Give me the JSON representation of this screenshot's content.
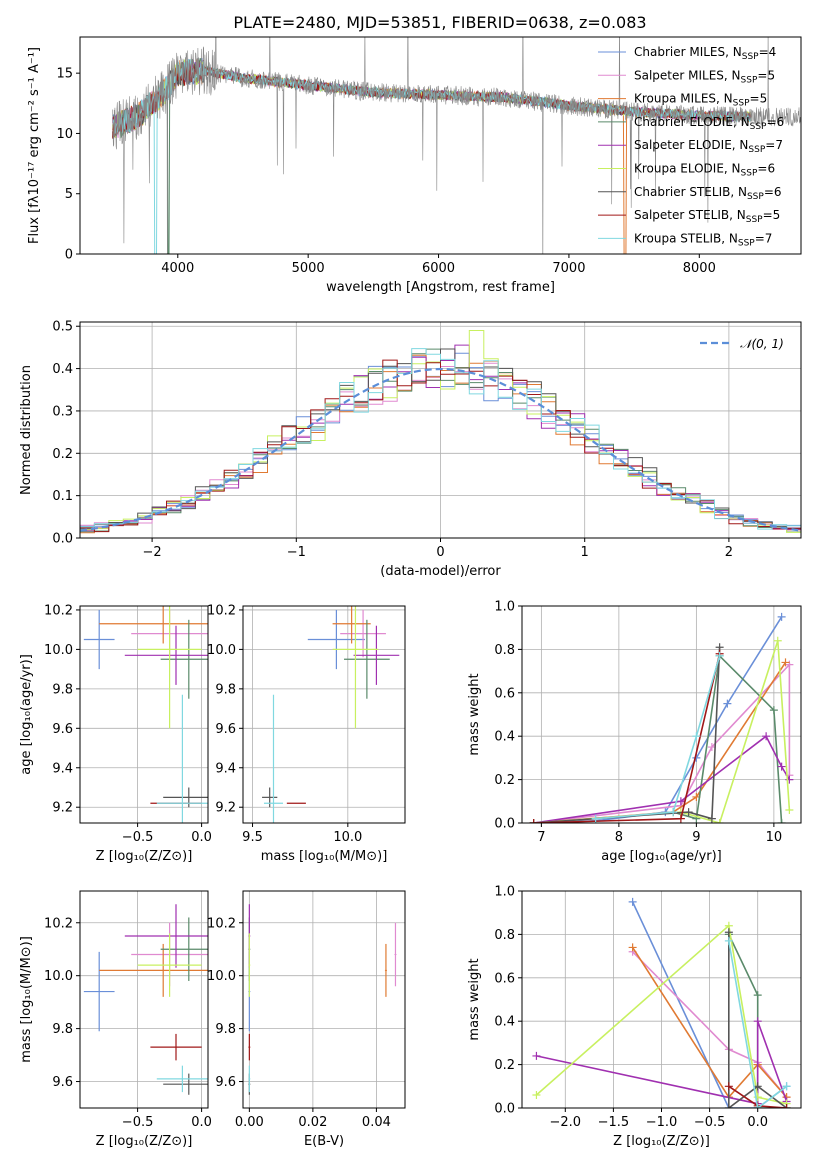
{
  "figure": {
    "title": "PLATE=2480, MJD=53851, FIBERID=0638, z=0.083"
  },
  "colors": {
    "chabrier_miles": "#6a8fd8",
    "salpeter_miles": "#e08ad0",
    "kroupa_miles": "#e07a33",
    "chabrier_elodie": "#5a8a6a",
    "salpeter_elodie": "#a030b0",
    "kroupa_elodie": "#c8f060",
    "chabrier_stelib": "#555555",
    "salpeter_stelib": "#a01818",
    "kroupa_stelib": "#80d8e0",
    "data": "#888888",
    "normal": "#5b8ed8"
  },
  "chart_data": [
    {
      "id": "spectrum",
      "type": "line",
      "xlabel": "wavelength [Angstrom, rest frame]",
      "ylabel": "Flux [fλ10⁻¹⁷ erg cm⁻² s⁻¹ A⁻¹]",
      "xlim": [
        3250,
        8780
      ],
      "ylim": [
        0,
        18
      ],
      "xticks": [
        "4000",
        "5000",
        "6000",
        "7000",
        "8000"
      ],
      "yticks": [
        "0",
        "5",
        "10",
        "15"
      ],
      "grid": false,
      "legend_position": "top-right",
      "legend": [
        {
          "label": "Chabrier MILES, N",
          "sub": "SSP",
          "post": "=4",
          "color_key": "chabrier_miles"
        },
        {
          "label": "Salpeter MILES, N",
          "sub": "SSP",
          "post": "=5",
          "color_key": "salpeter_miles"
        },
        {
          "label": "Kroupa MILES, N",
          "sub": "SSP",
          "post": "=5",
          "color_key": "kroupa_miles"
        },
        {
          "label": "Chabrier ELODIE, N",
          "sub": "SSP",
          "post": "=6",
          "color_key": "chabrier_elodie"
        },
        {
          "label": "Salpeter ELODIE, N",
          "sub": "SSP",
          "post": "=7",
          "color_key": "salpeter_elodie"
        },
        {
          "label": "Kroupa ELODIE, N",
          "sub": "SSP",
          "post": "=6",
          "color_key": "kroupa_elodie"
        },
        {
          "label": "Chabrier STELIB, N",
          "sub": "SSP",
          "post": "=6",
          "color_key": "chabrier_stelib"
        },
        {
          "label": "Salpeter STELIB, N",
          "sub": "SSP",
          "post": "=5",
          "color_key": "salpeter_stelib"
        },
        {
          "label": "Kroupa STELIB, N",
          "sub": "SSP",
          "post": "=7",
          "color_key": "kroupa_stelib"
        }
      ],
      "continuum": [
        [
          3500,
          10.5
        ],
        [
          3700,
          11.5
        ],
        [
          3900,
          13.5
        ],
        [
          4000,
          15.0
        ],
        [
          4200,
          15.2
        ],
        [
          4500,
          14.6
        ],
        [
          5000,
          14.0
        ],
        [
          5500,
          13.4
        ],
        [
          6000,
          13.2
        ],
        [
          6500,
          13.0
        ],
        [
          7000,
          12.3
        ],
        [
          7500,
          11.8
        ],
        [
          8000,
          11.5
        ],
        [
          8400,
          11.4
        ]
      ],
      "models_range": [
        3500,
        8400
      ]
    },
    {
      "id": "residuals",
      "type": "histogram",
      "xlabel": "(data-model)/error",
      "ylabel": "Normed distribution",
      "xlim": [
        -2.5,
        2.5
      ],
      "ylim": [
        0,
        0.51
      ],
      "xticks": [
        "−2",
        "−1",
        "0",
        "1",
        "2"
      ],
      "yticks": [
        "0.0",
        "0.1",
        "0.2",
        "0.3",
        "0.4",
        "0.5"
      ],
      "grid": true,
      "legend_position": "top-right",
      "legend": [
        {
          "label": "𝒩(0, 1)",
          "color_key": "normal"
        }
      ],
      "bin_width": 0.1
    },
    {
      "id": "age_vs_Z",
      "type": "scatter",
      "xlabel": "Z [log₁₀(Z/Z⊙)]",
      "ylabel": "age  [log₁₀(age/yr)]",
      "xlim": [
        -0.95,
        0.05
      ],
      "ylim": [
        9.12,
        10.22
      ],
      "xticks": [
        "−0.5",
        "0.0"
      ],
      "yticks": [
        "9.2",
        "9.4",
        "9.6",
        "9.8",
        "10.0",
        "10.2"
      ],
      "grid": true
    },
    {
      "id": "age_vs_mass",
      "type": "scatter",
      "xlabel": "mass [log₁₀(M/M⊙)]",
      "ylabel": "",
      "xlim": [
        9.45,
        10.3
      ],
      "ylim": [
        9.12,
        10.22
      ],
      "xticks": [
        "9.5",
        "10.0"
      ],
      "yticks": [
        "9.2",
        "9.4",
        "9.6",
        "9.8",
        "10.0",
        "10.2"
      ],
      "grid": true
    },
    {
      "id": "weight_vs_age",
      "type": "line",
      "xlabel": "age  [log₁₀(age/yr)]",
      "ylabel": "mass weight",
      "xlim": [
        6.75,
        10.35
      ],
      "ylim": [
        0,
        1.0
      ],
      "xticks": [
        "7",
        "8",
        "9",
        "10"
      ],
      "yticks": [
        "0.0",
        "0.2",
        "0.4",
        "0.6",
        "0.8",
        "1.0"
      ],
      "grid": true
    },
    {
      "id": "mass_vs_Z",
      "type": "scatter",
      "xlabel": "Z [log₁₀(Z/Z⊙)]",
      "ylabel": "mass [log₁₀(M/M⊙)]",
      "xlim": [
        -0.95,
        0.05
      ],
      "ylim": [
        9.5,
        10.32
      ],
      "xticks": [
        "−0.5",
        "0.0"
      ],
      "yticks": [
        "9.6",
        "9.8",
        "10.0",
        "10.2"
      ],
      "grid": true
    },
    {
      "id": "mass_vs_ebv",
      "type": "scatter",
      "xlabel": "E(B-V)",
      "ylabel": "",
      "xlim": [
        -0.002,
        0.049
      ],
      "ylim": [
        9.5,
        10.32
      ],
      "xticks": [
        "0.00",
        "0.02",
        "0.04"
      ],
      "yticks": [
        "9.6",
        "9.8",
        "10.0",
        "10.2"
      ],
      "grid": true
    },
    {
      "id": "weight_vs_Z",
      "type": "line",
      "xlabel": "Z [log₁₀(Z/Z⊙)]",
      "ylabel": "mass weight",
      "xlim": [
        -2.45,
        0.45
      ],
      "ylim": [
        0,
        1.0
      ],
      "xticks": [
        "−2.0",
        "−1.5",
        "−1.0",
        "−0.5",
        "0.0"
      ],
      "yticks": [
        "0.0",
        "0.2",
        "0.4",
        "0.6",
        "0.8",
        "1.0"
      ],
      "grid": true
    }
  ],
  "models": [
    {
      "key": "chabrier_miles",
      "age": 10.05,
      "age_err": 0.15,
      "Z": -0.8,
      "Z_err": 0.12,
      "mass": 9.94,
      "mass_err": 0.15,
      "ebv": 0.0,
      "age_w": [
        [
          6.9,
          0.0
        ],
        [
          7.7,
          0.01
        ],
        [
          8.6,
          0.05
        ],
        [
          9.0,
          0.3
        ],
        [
          9.4,
          0.55
        ],
        [
          10.1,
          0.95
        ]
      ],
      "Z_w": [
        [
          -1.3,
          0.95
        ],
        [
          -0.3,
          0.0
        ],
        [
          0.0,
          0.0
        ],
        [
          0.3,
          0.1
        ]
      ]
    },
    {
      "key": "salpeter_miles",
      "age": 10.08,
      "age_err": 0.12,
      "Z": -0.25,
      "Z_err": 0.3,
      "mass": 10.08,
      "mass_err": 0.12,
      "ebv": 0.046,
      "age_w": [
        [
          6.9,
          0.0
        ],
        [
          8.8,
          0.08
        ],
        [
          9.2,
          0.35
        ],
        [
          10.2,
          0.73
        ],
        [
          10.2,
          0.22
        ]
      ],
      "Z_w": [
        [
          -1.3,
          0.72
        ],
        [
          -0.3,
          0.27
        ],
        [
          0.0,
          0.21
        ],
        [
          0.3,
          0.05
        ]
      ]
    },
    {
      "key": "kroupa_miles",
      "age": 10.13,
      "age_err": 0.1,
      "Z": -0.3,
      "Z_err": 0.5,
      "mass": 10.02,
      "mass_err": 0.1,
      "ebv": 0.043,
      "age_w": [
        [
          6.9,
          0.0
        ],
        [
          8.7,
          0.05
        ],
        [
          9.0,
          0.12
        ],
        [
          10.15,
          0.74
        ]
      ],
      "Z_w": [
        [
          -1.3,
          0.74
        ],
        [
          -0.3,
          0.05
        ],
        [
          0.0,
          0.2
        ],
        [
          0.3,
          0.05
        ]
      ]
    },
    {
      "key": "chabrier_elodie",
      "age": 9.95,
      "age_err": 0.2,
      "Z": -0.1,
      "Z_err": 0.22,
      "mass": 10.1,
      "mass_err": 0.12,
      "ebv": 0.0,
      "age_w": [
        [
          8.7,
          0.05
        ],
        [
          9.0,
          0.02
        ],
        [
          9.3,
          0.77
        ],
        [
          10.0,
          0.52
        ],
        [
          10.1,
          0.0
        ]
      ],
      "Z_w": [
        [
          -0.3,
          0.8
        ],
        [
          0.0,
          0.52
        ],
        [
          0.0,
          0.0
        ],
        [
          0.3,
          0.0
        ]
      ]
    },
    {
      "key": "salpeter_elodie",
      "age": 9.97,
      "age_err": 0.15,
      "Z": -0.2,
      "Z_err": 0.4,
      "mass": 10.15,
      "mass_err": 0.12,
      "ebv": 0.0,
      "age_w": [
        [
          6.9,
          0.0
        ],
        [
          8.8,
          0.1
        ],
        [
          9.9,
          0.4
        ],
        [
          10.1,
          0.26
        ],
        [
          10.2,
          0.2
        ]
      ],
      "Z_w": [
        [
          -2.3,
          0.24
        ],
        [
          0.0,
          0.02
        ],
        [
          0.0,
          0.4
        ],
        [
          0.3,
          0.03
        ]
      ]
    },
    {
      "key": "kroupa_elodie",
      "age": 10.0,
      "age_err": 0.4,
      "Z": -0.25,
      "Z_err": 0.25,
      "mass": 10.04,
      "mass_err": 0.12,
      "ebv": 0.0,
      "age_w": [
        [
          6.9,
          0.0
        ],
        [
          8.8,
          0.05
        ],
        [
          9.3,
          0.0
        ],
        [
          10.05,
          0.84
        ],
        [
          10.2,
          0.06
        ]
      ],
      "Z_w": [
        [
          -2.3,
          0.06
        ],
        [
          -0.3,
          0.84
        ],
        [
          0.0,
          0.05
        ],
        [
          0.3,
          0.02
        ]
      ]
    },
    {
      "key": "chabrier_stelib",
      "age": 9.25,
      "age_err": 0.05,
      "Z": -0.1,
      "Z_err": 0.2,
      "mass": 9.59,
      "mass_err": 0.04,
      "ebv": 0.0,
      "age_w": [
        [
          6.9,
          0.0
        ],
        [
          8.9,
          0.05
        ],
        [
          9.2,
          0.02
        ],
        [
          9.3,
          0.81
        ]
      ],
      "Z_w": [
        [
          -0.3,
          0.81
        ],
        [
          -0.3,
          0.0
        ],
        [
          0.0,
          0.1
        ],
        [
          0.3,
          0.0
        ]
      ]
    },
    {
      "key": "salpeter_stelib",
      "age": 9.22,
      "age_err": 0.0,
      "Z": -0.2,
      "Z_err": 0.2,
      "mass": 9.73,
      "mass_err": 0.05,
      "ebv": 0.0,
      "age_w": [
        [
          6.9,
          0.0
        ],
        [
          8.8,
          0.02
        ],
        [
          9.3,
          0.78
        ]
      ],
      "Z_w": [
        [
          -0.3,
          0.1
        ],
        [
          0.0,
          0.01
        ],
        [
          0.3,
          0.0
        ]
      ]
    },
    {
      "key": "kroupa_stelib",
      "age": 9.22,
      "age_err": 0.55,
      "Z": -0.15,
      "Z_err": 0.2,
      "mass": 9.61,
      "mass_err": 0.05,
      "ebv": 0.0,
      "age_w": [
        [
          7.7,
          0.02
        ],
        [
          8.7,
          0.05
        ],
        [
          9.0,
          0.4
        ],
        [
          9.3,
          0.77
        ]
      ],
      "Z_w": [
        [
          -0.3,
          0.77
        ],
        [
          0.0,
          0.0
        ],
        [
          0.3,
          0.1
        ]
      ]
    }
  ]
}
